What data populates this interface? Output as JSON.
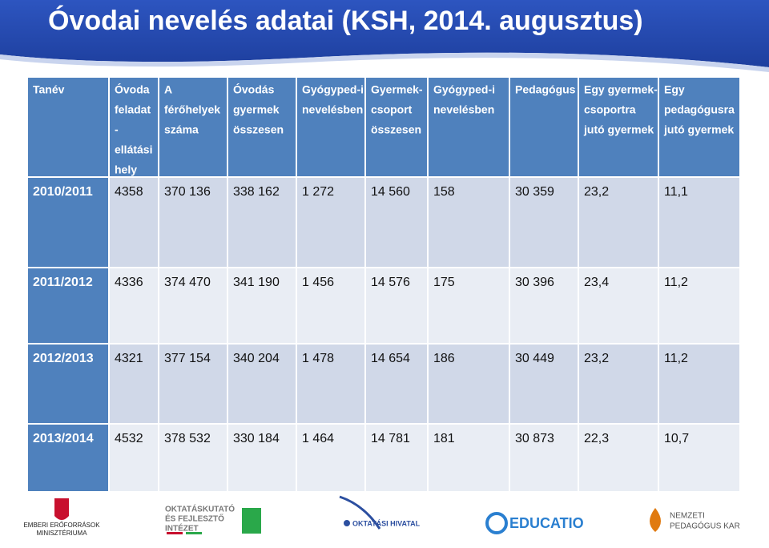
{
  "title": "Óvodai nevelés adatai (KSH, 2014. augusztus)",
  "table": {
    "header": [
      [
        "Tanév"
      ],
      [
        "Óvoda",
        "feladat",
        "-",
        "ellátási",
        "hely"
      ],
      [
        "A",
        "férőhelyek",
        "száma"
      ],
      [
        "Óvodás",
        "gyermek",
        "összesen"
      ],
      [
        "Gyógyped-i",
        "nevelésben"
      ],
      [
        "Gyermek-",
        "csoport",
        "összesen"
      ],
      [
        "Gyógyped-i",
        "nevelésben"
      ],
      [
        "Pedagógus"
      ],
      [
        "Egy gyermek-",
        "csoportra",
        "jutó gyermek"
      ],
      [
        "Egy",
        "pedagógusra",
        "jutó gyermek"
      ]
    ],
    "rows": [
      [
        "2010/2011",
        "4358",
        "370 136",
        "338 162",
        "1 272",
        "14 560",
        "158",
        "30 359",
        "23,2",
        "11,1"
      ],
      [
        "2011/2012",
        "4336",
        "374 470",
        "341 190",
        "1 456",
        "14 576",
        "175",
        "30 396",
        "23,4",
        "11,2"
      ],
      [
        "2012/2013",
        "4321",
        "377 154",
        "340 204",
        "1 478",
        "14 654",
        "186",
        "30 449",
        "23,2",
        "11,2"
      ],
      [
        "2013/2014",
        "4532",
        "378 532",
        "330 184",
        "1 464",
        "14 781",
        "181",
        "30 873",
        "22,3",
        "10,7"
      ]
    ]
  },
  "logos": [
    {
      "lines": [
        "EMBERI ERŐFORRÁSOK",
        "MINISZTÉRIUMA"
      ]
    },
    {
      "lines": [
        "OKTATÁSKUTATÓ",
        "ÉS FEJLESZTŐ",
        "INTÉZET"
      ]
    },
    {
      "lines": [
        "OKTATÁSI HIVATAL"
      ]
    },
    {
      "lines": [
        "EDUCATIO"
      ]
    },
    {
      "lines": [
        "NEMZETI",
        "PEDAGÓGUS KAR"
      ]
    }
  ]
}
